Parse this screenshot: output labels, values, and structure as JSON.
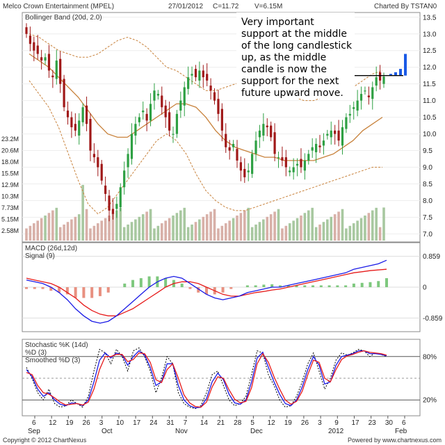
{
  "header": {
    "title": "Melco Crown Entertainment (MPEL)",
    "date": "27/01/2012",
    "close": "C=11.72",
    "volume": "V=6.15M",
    "charted_by": "Charted By TSTAN0"
  },
  "footer": {
    "copyright": "Copyright © 2012 ChartNexus",
    "powered": "Powered by www.chartnexus.com"
  },
  "annotation": [
    "Very important",
    "support at the middle",
    "of the long candlestick",
    "up, as the middle",
    "candle is now the",
    "support for the next",
    "future upward move."
  ],
  "colors": {
    "up": "#2ea043",
    "down": "#a01818",
    "bb": "#c8823c",
    "macd": "#1a1ae6",
    "signal": "#e61a1a",
    "vol_up": "#a8c8a0",
    "vol_down": "#d8b0a8",
    "projection": "#1a5ae6"
  },
  "chart_data": [
    {
      "type": "candlestick",
      "title": "Melco Crown Entertainment (MPEL)",
      "indicator_label": "Bollinger Band (20d, 2.0)",
      "ylim": [
        6.8,
        13.6
      ],
      "y_ticks": [
        "13.5",
        "13.0",
        "12.5",
        "12.0",
        "11.5",
        "11.0",
        "10.5",
        "10.0",
        "9.5",
        "9.0",
        "8.5",
        "8.0",
        "7.5",
        "7.0"
      ],
      "volume_ticks": [
        "23.2M",
        "20.6M",
        "18.0M",
        "15.5M",
        "12.9M",
        "10.3M",
        "7.73M",
        "5.15M",
        "2.58M"
      ],
      "x_ticks": [
        "6",
        "12",
        "19",
        "26",
        "3",
        "10",
        "17",
        "24",
        "31",
        "7",
        "14",
        "21",
        "28",
        "5",
        "12",
        "19",
        "26",
        "3",
        "9",
        "17",
        "23",
        "30",
        "6"
      ],
      "month_labels": [
        "Sep",
        "Oct",
        "Nov",
        "Dec",
        "2012",
        "Feb"
      ],
      "close_path": [
        13.0,
        12.7,
        12.5,
        12.4,
        12.2,
        12.3,
        11.9,
        11.7,
        12.2,
        11.5,
        10.8,
        10.5,
        10.2,
        10.1,
        10.4,
        10.8,
        10.3,
        9.5,
        9.3,
        9.0,
        8.6,
        8.2,
        7.7,
        7.6,
        7.9,
        8.4,
        8.9,
        9.4,
        10.0,
        10.3,
        10.5,
        10.7,
        10.4,
        10.9,
        11.3,
        11.2,
        10.8,
        10.5,
        10.1,
        10.0,
        10.6,
        11.0,
        11.4,
        11.7,
        11.8,
        11.7,
        11.9,
        11.7,
        11.6,
        11.3,
        11.0,
        10.6,
        10.1,
        9.6,
        9.5,
        9.7,
        9.2,
        8.9,
        8.7,
        8.9,
        9.4,
        9.8,
        10.1,
        10.3,
        10.2,
        9.9,
        9.4,
        9.3,
        9.2,
        9.0,
        8.9,
        9.0,
        9.1,
        9.0,
        9.2,
        9.4,
        9.6,
        9.7,
        9.6,
        9.8,
        10.0,
        10.1,
        10.0,
        9.8,
        10.2,
        10.5,
        10.6,
        10.8,
        11.0,
        11.2,
        11.3,
        11.1,
        11.4,
        11.7,
        11.6,
        11.72
      ],
      "bollinger_upper": [
        13.0,
        12.9,
        12.7,
        12.5,
        12.4,
        12.3,
        12.3,
        12.4,
        12.6,
        12.8,
        12.9,
        12.8,
        12.6,
        12.3,
        12.0,
        11.9,
        11.7,
        11.5,
        11.3,
        11.3,
        11.4,
        11.5,
        11.6,
        11.7,
        11.6,
        11.4,
        11.3,
        11.1,
        11.0,
        11.0,
        11.1,
        11.2,
        11.3,
        11.4,
        11.6,
        11.8,
        11.9
      ],
      "bollinger_middle": [
        12.4,
        12.2,
        12.0,
        11.7,
        11.4,
        11.1,
        10.7,
        10.3,
        10.0,
        9.9,
        9.9,
        10.1,
        10.3,
        10.5,
        10.7,
        10.9,
        10.9,
        10.8,
        10.5,
        10.1,
        9.8,
        9.6,
        9.5,
        9.4,
        9.3,
        9.3,
        9.2,
        9.2,
        9.2,
        9.2,
        9.3,
        9.4,
        9.6,
        9.8,
        10.1,
        10.3,
        10.5
      ],
      "bollinger_lower": [
        11.6,
        11.2,
        10.8,
        10.2,
        9.4,
        8.6,
        7.9,
        7.6,
        7.8,
        8.2,
        8.6,
        9.0,
        9.4,
        9.8,
        10.0,
        9.8,
        9.4,
        8.8,
        8.3,
        8.0,
        7.8,
        7.7,
        7.7,
        7.8,
        7.9,
        8.0,
        8.1,
        8.2,
        8.3,
        8.4,
        8.5,
        8.6,
        8.7,
        8.8,
        8.9,
        9.0,
        9.0
      ],
      "resistance_level": 11.75,
      "projection_bars": [
        11.8,
        11.85,
        11.95,
        12.4
      ]
    },
    {
      "type": "line",
      "title": "MACD (26d,12d)",
      "series": [
        {
          "name": "MACD (26d,12d)"
        },
        {
          "name": "Signal (9)"
        }
      ],
      "y_ticks": [
        "0.859",
        "0",
        "-0.859"
      ],
      "ylim": [
        -1.2,
        1.2
      ],
      "macd": [
        0.2,
        0.15,
        0.1,
        0.0,
        -0.15,
        -0.35,
        -0.6,
        -0.8,
        -0.95,
        -1.0,
        -0.95,
        -0.8,
        -0.6,
        -0.4,
        -0.2,
        0.0,
        0.15,
        0.25,
        0.3,
        0.25,
        0.1,
        -0.05,
        -0.2,
        -0.3,
        -0.35,
        -0.3,
        -0.25,
        -0.15,
        -0.1,
        -0.05,
        0.0,
        0.0,
        0.05,
        0.1,
        0.15,
        0.2,
        0.25,
        0.3,
        0.35,
        0.4,
        0.5,
        0.55,
        0.6,
        0.65,
        0.75
      ],
      "signal": [
        0.25,
        0.2,
        0.15,
        0.1,
        0.0,
        -0.15,
        -0.3,
        -0.5,
        -0.65,
        -0.75,
        -0.8,
        -0.8,
        -0.7,
        -0.6,
        -0.45,
        -0.3,
        -0.15,
        0.0,
        0.1,
        0.15,
        0.15,
        0.1,
        0.0,
        -0.1,
        -0.2,
        -0.25,
        -0.25,
        -0.2,
        -0.15,
        -0.12,
        -0.08,
        -0.05,
        0.0,
        0.05,
        0.1,
        0.15,
        0.2,
        0.25,
        0.3,
        0.35,
        0.4,
        0.43,
        0.46,
        0.48,
        0.5
      ]
    },
    {
      "type": "line",
      "title": "Stochastic %K (14d)",
      "series": [
        {
          "name": "Stochastic %K (14d)"
        },
        {
          "name": "%D (3)"
        },
        {
          "name": "Smoothed %D (3)"
        }
      ],
      "y_ticks": [
        "80%",
        "20%"
      ],
      "ylim": [
        0,
        100
      ],
      "k": [
        65,
        50,
        30,
        20,
        35,
        15,
        10,
        12,
        20,
        15,
        10,
        25,
        60,
        90,
        85,
        70,
        90,
        80,
        60,
        88,
        92,
        80,
        60,
        30,
        50,
        80,
        70,
        30,
        15,
        10,
        8,
        12,
        30,
        55,
        60,
        40,
        20,
        12,
        15,
        25,
        55,
        88,
        85,
        55,
        40,
        20,
        10,
        12,
        25,
        45,
        70,
        85,
        60,
        35,
        50,
        75,
        85,
        82,
        85,
        90,
        88,
        80,
        85,
        83,
        80
      ],
      "d": [
        62,
        52,
        35,
        25,
        30,
        20,
        14,
        12,
        16,
        15,
        12,
        20,
        45,
        75,
        85,
        78,
        85,
        82,
        68,
        80,
        88,
        82,
        65,
        40,
        45,
        70,
        70,
        40,
        20,
        12,
        9,
        10,
        22,
        45,
        57,
        48,
        28,
        16,
        14,
        20,
        45,
        78,
        86,
        65,
        45,
        28,
        15,
        12,
        20,
        38,
        62,
        80,
        68,
        42,
        45,
        68,
        80,
        82,
        84,
        88,
        88,
        84,
        84,
        83,
        81
      ],
      "smoothed_d": [
        58,
        55,
        40,
        30,
        28,
        23,
        17,
        13,
        14,
        15,
        13,
        17,
        35,
        62,
        80,
        80,
        83,
        83,
        73,
        76,
        85,
        84,
        72,
        48,
        44,
        62,
        70,
        50,
        27,
        16,
        11,
        10,
        17,
        38,
        52,
        50,
        34,
        21,
        16,
        18,
        37,
        70,
        84,
        72,
        52,
        35,
        20,
        14,
        18,
        32,
        55,
        75,
        72,
        50,
        45,
        62,
        76,
        81,
        83,
        86,
        88,
        86,
        85,
        84,
        82
      ]
    }
  ]
}
